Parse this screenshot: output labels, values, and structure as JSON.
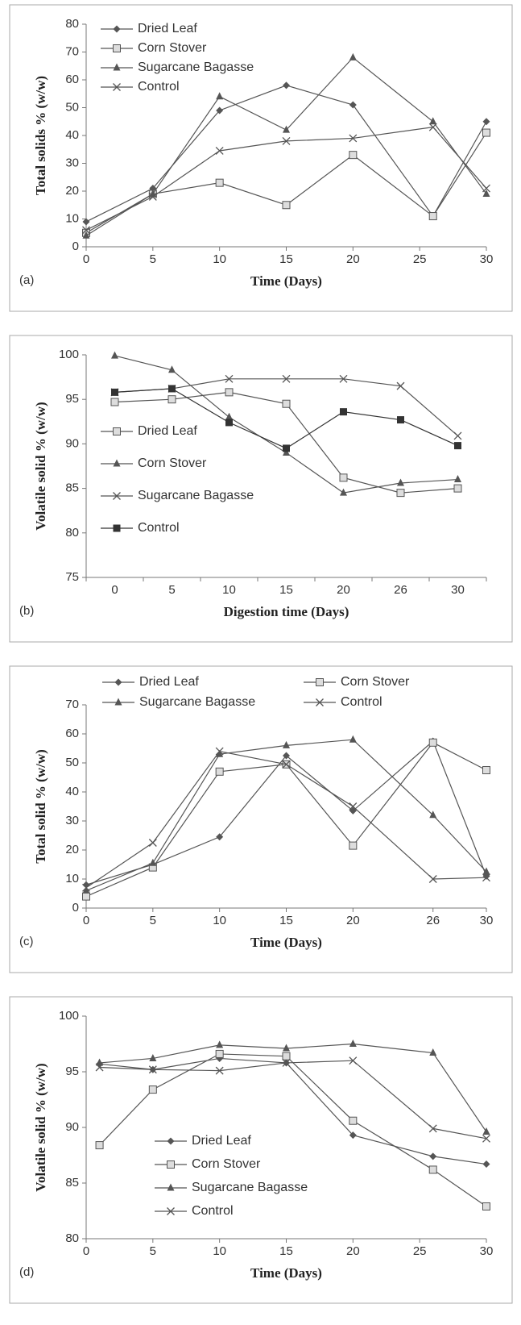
{
  "chart_data": [
    {
      "type": "line",
      "label": "(a)",
      "y_label": "Total solids % (w/w)",
      "x_label": "Time (Days)",
      "x": [
        0,
        5,
        10,
        15,
        20,
        26,
        30
      ],
      "xlim": [
        0,
        30
      ],
      "xticks": [
        0,
        5,
        10,
        15,
        20,
        25,
        30
      ],
      "ylim": [
        0,
        80
      ],
      "yticks": [
        0,
        10,
        20,
        30,
        40,
        50,
        60,
        70,
        80
      ],
      "legend": "upper left",
      "series": [
        {
          "name": "Dried Leaf",
          "color": "#555555",
          "marker": "diamond",
          "values": [
            9,
            21,
            49,
            58,
            51,
            11,
            45
          ]
        },
        {
          "name": "Corn Stover",
          "color": "#555555",
          "marker": "square",
          "values": [
            5,
            19,
            23,
            15,
            33,
            11,
            41
          ]
        },
        {
          "name": "Sugarcane Bagasse",
          "color": "#555555",
          "marker": "triangle",
          "values": [
            4,
            19,
            54,
            42,
            68,
            45,
            19
          ]
        },
        {
          "name": "Control",
          "color": "#555555",
          "marker": "x",
          "values": [
            6,
            18,
            34.5,
            38,
            39,
            43,
            21
          ]
        }
      ]
    },
    {
      "type": "line",
      "label": "(b)",
      "y_label": "Volatile solid % (w/w)",
      "x_label": "Digestion time (Days)",
      "categories": [
        "0",
        "5",
        "10",
        "15",
        "20",
        "26",
        "30"
      ],
      "ylim": [
        75,
        100
      ],
      "yticks": [
        75,
        80,
        85,
        90,
        95,
        100
      ],
      "legend": "center left",
      "series": [
        {
          "name": "Dried Leaf",
          "color": "#555555",
          "marker": "square",
          "values": [
            94.7,
            95,
            95.8,
            94.5,
            86.2,
            84.5,
            85
          ]
        },
        {
          "name": "Corn Stover",
          "color": "#555555",
          "marker": "triangle",
          "values": [
            99.9,
            98.3,
            93,
            89,
            84.5,
            85.6,
            86
          ]
        },
        {
          "name": "Sugarcane Bagasse",
          "color": "#555555",
          "marker": "x",
          "values": [
            95.8,
            96.2,
            97.3,
            97.3,
            97.3,
            96.5,
            90.9
          ]
        },
        {
          "name": "Control",
          "color": "#333333",
          "marker": "filled-square",
          "values": [
            95.8,
            96.2,
            92.4,
            89.5,
            93.6,
            92.7,
            89.8
          ]
        }
      ]
    },
    {
      "type": "line",
      "label": "(c)",
      "y_label": "Total solid % (w/w)",
      "x_label": "Time (Days)",
      "x": [
        0,
        5,
        10,
        15,
        20,
        26,
        30
      ],
      "xlim": [
        0,
        30
      ],
      "xticks": [
        0,
        5,
        10,
        15,
        20,
        26,
        30
      ],
      "ylim": [
        0,
        70
      ],
      "yticks": [
        0,
        10,
        20,
        30,
        40,
        50,
        60,
        70
      ],
      "legend": "top",
      "series": [
        {
          "name": "Dried Leaf",
          "color": "#555555",
          "marker": "diamond",
          "values": [
            8,
            15,
            24.5,
            52.5,
            33.5,
            57.5,
            11
          ]
        },
        {
          "name": "Corn Stover",
          "color": "#555555",
          "marker": "square",
          "values": [
            4,
            14,
            47,
            49.5,
            21.5,
            57,
            47.5
          ]
        },
        {
          "name": "Sugarcane Bagasse",
          "color": "#555555",
          "marker": "triangle",
          "values": [
            6,
            15.5,
            53,
            56,
            58,
            32,
            12.5
          ]
        },
        {
          "name": "Control",
          "color": "#555555",
          "marker": "x",
          "values": [
            7,
            22.5,
            54,
            49.5,
            35,
            10,
            10.5
          ]
        }
      ]
    },
    {
      "type": "line",
      "label": "(d)",
      "y_label": "Volatile solid % (w/w)",
      "x_label": "Time (Days)",
      "x": [
        1,
        5,
        10,
        15,
        20,
        26,
        30
      ],
      "xlim": [
        0,
        30
      ],
      "xticks": [
        0,
        5,
        10,
        15,
        20,
        25,
        30
      ],
      "ylim": [
        80,
        100
      ],
      "yticks": [
        80,
        85,
        90,
        95,
        100
      ],
      "legend": "center",
      "series": [
        {
          "name": "Dried Leaf",
          "color": "#555555",
          "marker": "diamond",
          "values": [
            95.7,
            95.2,
            96.2,
            95.8,
            89.3,
            87.4,
            86.7
          ]
        },
        {
          "name": "Corn Stover",
          "color": "#555555",
          "marker": "square",
          "values": [
            88.4,
            93.4,
            96.6,
            96.4,
            90.6,
            86.2,
            82.9
          ]
        },
        {
          "name": "Sugarcane Bagasse",
          "color": "#555555",
          "marker": "triangle",
          "values": [
            95.8,
            96.2,
            97.4,
            97.1,
            97.5,
            96.7,
            89.6
          ]
        },
        {
          "name": "Control",
          "color": "#555555",
          "marker": "x",
          "values": [
            95.4,
            95.2,
            95.1,
            95.8,
            96,
            89.9,
            89
          ]
        }
      ]
    }
  ]
}
